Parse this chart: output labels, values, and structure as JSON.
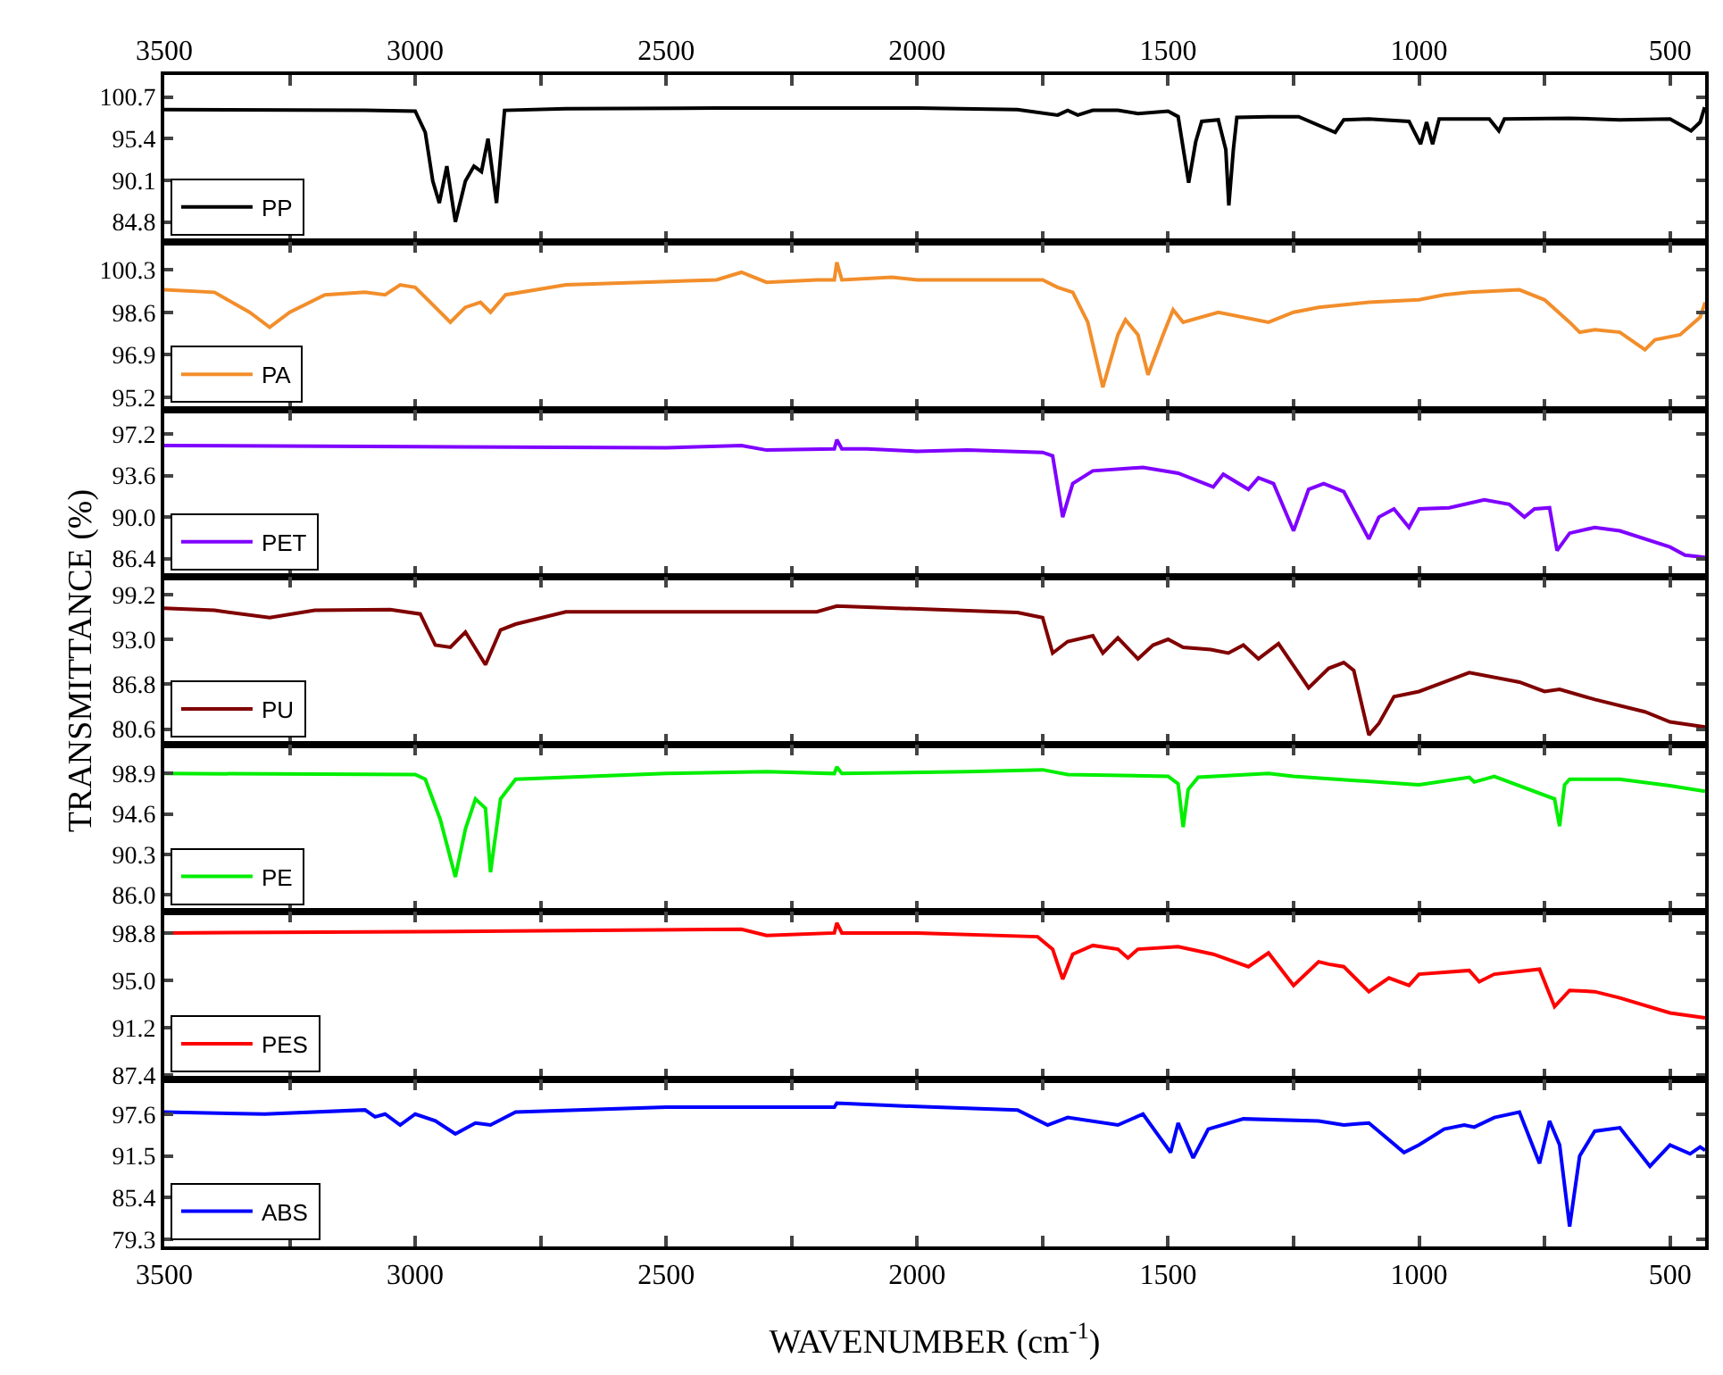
{
  "chart_data": [
    {
      "type": "line",
      "legend": "bottom left",
      "xlim": [
        3500,
        430
      ],
      "xticks": [
        3500,
        {
          "value": 3250,
          "label": null
        },
        3000,
        {
          "value": 2750,
          "label": null
        },
        2500,
        {
          "value": 2250,
          "label": null
        },
        2000,
        {
          "value": 1750,
          "label": null
        },
        1500,
        {
          "value": 1250,
          "label": null
        },
        1000,
        {
          "value": 750,
          "label": null
        },
        500
      ],
      "ylim": [
        82.2,
        103.5
      ],
      "yticks": [
        84.8,
        90.1,
        95.4,
        100.7
      ],
      "series": [
        {
          "name": "PP",
          "color": "#000000",
          "x": [
            3500,
            3100,
            3000,
            2980,
            2965,
            2952,
            2937,
            2920,
            2900,
            2883,
            2868,
            2855,
            2838,
            2822,
            2700,
            2400,
            2000,
            1800,
            1720,
            1700,
            1680,
            1650,
            1600,
            1560,
            1500,
            1480,
            1459,
            1445,
            1433,
            1400,
            1385,
            1379,
            1370,
            1363,
            1300,
            1240,
            1167,
            1150,
            1100,
            1020,
            997,
            985,
            973,
            960,
            900,
            860,
            841,
            830,
            700,
            600,
            500,
            458,
            440,
            431
          ],
          "values": [
            99.1,
            99.0,
            98.9,
            96.2,
            90,
            87.2,
            91.9,
            84.8,
            90,
            91.9,
            91.2,
            95.4,
            87.2,
            99.0,
            99.2,
            99.3,
            99.3,
            99.1,
            98.4,
            99.0,
            98.4,
            99.0,
            99.0,
            98.6,
            98.9,
            98.2,
            89.8,
            95,
            97.6,
            97.8,
            94,
            86.9,
            94,
            98.1,
            98.2,
            98.2,
            96.2,
            97.8,
            97.9,
            97.6,
            94.7,
            97.5,
            94.7,
            97.9,
            97.9,
            97.9,
            96.4,
            97.9,
            98.0,
            97.8,
            97.9,
            96.4,
            97.5,
            99.4
          ]
        }
      ]
    },
    {
      "type": "line",
      "legend": "bottom left",
      "tick_labels": "y",
      "xlim": [
        3500,
        430
      ],
      "xticks": [
        3500,
        {
          "value": 3250,
          "label": null
        },
        3000,
        {
          "value": 2750,
          "label": null
        },
        2500,
        {
          "value": 2250,
          "label": null
        },
        2000,
        {
          "value": 1750,
          "label": null
        },
        1500,
        {
          "value": 1250,
          "label": null
        },
        1000,
        {
          "value": 750,
          "label": null
        },
        500
      ],
      "ylim": [
        94.7,
        101.4
      ],
      "yticks": [
        95.2,
        96.9,
        98.6,
        100.3
      ],
      "series": [
        {
          "name": "PA",
          "color": "#f28e2b",
          "x": [
            3500,
            3400,
            3330,
            3290,
            3250,
            3180,
            3100,
            3060,
            3030,
            3000,
            2960,
            2930,
            2900,
            2870,
            2850,
            2820,
            2700,
            2400,
            2350,
            2300,
            2200,
            2165,
            2160,
            2150,
            2050,
            2000,
            1900,
            1750,
            1720,
            1690,
            1660,
            1630,
            1600,
            1585,
            1560,
            1540,
            1510,
            1490,
            1470,
            1400,
            1300,
            1250,
            1200,
            1100,
            1000,
            950,
            900,
            800,
            750,
            700,
            680,
            650,
            600,
            550,
            530,
            480,
            440,
            430
          ],
          "values": [
            99.5,
            99.4,
            98.6,
            98.0,
            98.6,
            99.3,
            99.4,
            99.3,
            99.7,
            99.6,
            98.8,
            98.2,
            98.8,
            99.0,
            98.6,
            99.3,
            99.7,
            99.9,
            100.2,
            99.8,
            99.9,
            99.9,
            100.6,
            99.9,
            100.0,
            99.9,
            99.9,
            99.9,
            99.6,
            99.4,
            98.2,
            95.6,
            97.7,
            98.3,
            97.7,
            96.1,
            97.7,
            98.7,
            98.2,
            98.6,
            98.2,
            98.6,
            98.8,
            99.0,
            99.1,
            99.3,
            99.4,
            99.5,
            99.1,
            98.2,
            97.8,
            97.9,
            97.8,
            97.1,
            97.5,
            97.7,
            98.4,
            99.0
          ]
        }
      ]
    },
    {
      "type": "line",
      "legend": "bottom left",
      "tick_labels": "y",
      "xlim": [
        3500,
        430
      ],
      "xticks": [
        3500,
        {
          "value": 3250,
          "label": null
        },
        3000,
        {
          "value": 2750,
          "label": null
        },
        2500,
        {
          "value": 2250,
          "label": null
        },
        2000,
        {
          "value": 1750,
          "label": null
        },
        1500,
        {
          "value": 1250,
          "label": null
        },
        1000,
        {
          "value": 750,
          "label": null
        },
        500
      ],
      "ylim": [
        84.8,
        99.3
      ],
      "yticks": [
        86.4,
        {
          "value": 90,
          "label": "90.0"
        },
        93.6,
        97.2
      ],
      "series": [
        {
          "name": "PET",
          "color": "#7f00ff",
          "x": [
            3500,
            3000,
            2500,
            2350,
            2300,
            2165,
            2160,
            2150,
            2100,
            2000,
            1900,
            1750,
            1730,
            1710,
            1690,
            1650,
            1550,
            1480,
            1410,
            1390,
            1340,
            1320,
            1290,
            1250,
            1220,
            1190,
            1150,
            1100,
            1080,
            1050,
            1020,
            1000,
            940,
            870,
            820,
            790,
            770,
            740,
            725,
            700,
            650,
            600,
            500,
            470,
            430
          ],
          "values": [
            96.2,
            96.1,
            96.0,
            96.2,
            95.8,
            95.9,
            96.7,
            95.9,
            95.9,
            95.7,
            95.8,
            95.6,
            95.3,
            90.0,
            92.9,
            94.0,
            94.3,
            93.8,
            92.6,
            93.7,
            92.4,
            93.4,
            92.9,
            88.8,
            92.4,
            92.9,
            92.2,
            88.1,
            90.0,
            90.7,
            89.1,
            90.7,
            90.8,
            91.5,
            91.1,
            90.0,
            90.7,
            90.8,
            87.1,
            88.6,
            89.1,
            88.8,
            87.4,
            86.7,
            86.5
          ]
        }
      ]
    },
    {
      "type": "line",
      "legend": "bottom left",
      "tick_labels": "y",
      "xlim": [
        3500,
        430
      ],
      "xticks": [
        3500,
        {
          "value": 3250,
          "label": null
        },
        3000,
        {
          "value": 2750,
          "label": null
        },
        2500,
        {
          "value": 2250,
          "label": null
        },
        2000,
        {
          "value": 1750,
          "label": null
        },
        1500,
        {
          "value": 1250,
          "label": null
        },
        1000,
        {
          "value": 750,
          "label": null
        },
        500
      ],
      "ylim": [
        78.5,
        101.6
      ],
      "yticks": [
        80.6,
        86.8,
        {
          "value": 93,
          "label": "93.0"
        },
        99.2
      ],
      "ylabel": "TRANSMITTANCE (%)",
      "series": [
        {
          "name": "PU",
          "color": "#800000",
          "x": [
            3500,
            3400,
            3290,
            3200,
            3050,
            2990,
            2960,
            2930,
            2900,
            2860,
            2830,
            2800,
            2700,
            2200,
            2160,
            1800,
            1750,
            1730,
            1700,
            1650,
            1630,
            1600,
            1560,
            1530,
            1500,
            1470,
            1415,
            1380,
            1350,
            1320,
            1280,
            1220,
            1180,
            1150,
            1130,
            1100,
            1080,
            1050,
            1000,
            900,
            800,
            750,
            720,
            650,
            550,
            500,
            430
          ],
          "values": [
            97.3,
            97.0,
            96.0,
            97.0,
            97.1,
            96.5,
            92.2,
            91.9,
            94.0,
            89.5,
            94.3,
            95.1,
            96.8,
            96.8,
            97.6,
            96.7,
            96.0,
            91.1,
            92.7,
            93.5,
            91.1,
            93.2,
            90.3,
            92.2,
            93.0,
            91.9,
            91.6,
            91.1,
            92.2,
            90.3,
            92.4,
            86.3,
            89.0,
            89.8,
            88.7,
            79.8,
            81.4,
            85.1,
            85.8,
            88.4,
            87.1,
            85.8,
            86.1,
            84.7,
            83.0,
            81.6,
            80.9
          ]
        }
      ]
    },
    {
      "type": "line",
      "legend": "bottom left",
      "tick_labels": "y",
      "xlim": [
        3500,
        430
      ],
      "xticks": [
        3500,
        {
          "value": 3250,
          "label": null
        },
        3000,
        {
          "value": 2750,
          "label": null
        },
        2500,
        {
          "value": 2250,
          "label": null
        },
        2000,
        {
          "value": 1750,
          "label": null
        },
        1500,
        {
          "value": 1250,
          "label": null
        },
        1000,
        {
          "value": 750,
          "label": null
        },
        500
      ],
      "ylim": [
        84.2,
        102.0
      ],
      "yticks": [
        {
          "value": 86,
          "label": "86.0"
        },
        90.3,
        94.6,
        98.9
      ],
      "series": [
        {
          "name": "PE",
          "color": "#00ee00",
          "x": [
            3500,
            3000,
            2980,
            2950,
            2920,
            2900,
            2880,
            2860,
            2850,
            2830,
            2800,
            2500,
            2300,
            2165,
            2160,
            2150,
            1900,
            1750,
            1700,
            1500,
            1480,
            1470,
            1460,
            1440,
            1300,
            1250,
            1000,
            900,
            890,
            850,
            730,
            720,
            710,
            700,
            600,
            500,
            430
          ],
          "values": [
            98.9,
            98.8,
            98.3,
            94.0,
            87.9,
            93.0,
            96.2,
            95.2,
            88.4,
            96.2,
            98.3,
            98.9,
            99.1,
            98.9,
            99.6,
            98.9,
            99.1,
            99.3,
            98.8,
            98.6,
            97.8,
            93.2,
            97.2,
            98.5,
            98.9,
            98.6,
            97.7,
            98.5,
            98.0,
            98.6,
            96.2,
            93.3,
            97.7,
            98.3,
            98.3,
            97.6,
            97.0
          ]
        }
      ]
    },
    {
      "type": "line",
      "legend": "bottom left",
      "tick_labels": "y",
      "xlim": [
        3500,
        430
      ],
      "xticks": [
        3500,
        {
          "value": 3250,
          "label": null
        },
        3000,
        {
          "value": 2750,
          "label": null
        },
        2500,
        {
          "value": 2250,
          "label": null
        },
        2000,
        {
          "value": 1750,
          "label": null
        },
        1500,
        {
          "value": 1250,
          "label": null
        },
        1000,
        {
          "value": 750,
          "label": null
        },
        500
      ],
      "ylim": [
        87.1,
        100.5
      ],
      "yticks": [
        87.4,
        91.2,
        {
          "value": 95,
          "label": "95.0"
        },
        98.8
      ],
      "series": [
        {
          "name": "PES",
          "color": "#ff0000",
          "x": [
            3500,
            3000,
            2350,
            2300,
            2165,
            2160,
            2150,
            2000,
            1760,
            1730,
            1710,
            1690,
            1650,
            1600,
            1580,
            1560,
            1480,
            1410,
            1340,
            1300,
            1250,
            1200,
            1180,
            1150,
            1100,
            1060,
            1020,
            1000,
            900,
            880,
            850,
            760,
            730,
            700,
            650,
            600,
            500,
            430
          ],
          "values": [
            98.8,
            98.9,
            99.1,
            98.6,
            98.8,
            99.6,
            98.8,
            98.8,
            98.5,
            97.5,
            95.1,
            97.1,
            97.8,
            97.5,
            96.8,
            97.5,
            97.7,
            97.1,
            96.1,
            97.2,
            94.6,
            96.5,
            96.3,
            96.1,
            94.1,
            95.2,
            94.6,
            95.5,
            95.8,
            94.9,
            95.5,
            95.9,
            92.9,
            94.2,
            94.1,
            93.6,
            92.4,
            92.0
          ]
        }
      ]
    },
    {
      "type": "line",
      "legend": "bottom left",
      "xlim": [
        3500,
        430
      ],
      "xticks": [
        3500,
        {
          "value": 3250,
          "label": null
        },
        3000,
        {
          "value": 2750,
          "label": null
        },
        2500,
        {
          "value": 2250,
          "label": null
        },
        2000,
        {
          "value": 1750,
          "label": null
        },
        1500,
        {
          "value": 1250,
          "label": null
        },
        1000,
        {
          "value": 750,
          "label": null
        },
        500
      ],
      "ylim": [
        78.3,
        102.7
      ],
      "yticks": [
        79.3,
        85.4,
        91.5,
        97.6
      ],
      "xlabel": "WAVENUMBER (cm$^{-1}$)",
      "series": [
        {
          "name": "ABS",
          "color": "#0000ff",
          "x": [
            3500,
            3300,
            3100,
            3080,
            3060,
            3030,
            3000,
            2960,
            2920,
            2880,
            2850,
            2800,
            2500,
            2165,
            2160,
            2000,
            1800,
            1740,
            1700,
            1600,
            1550,
            1495,
            1480,
            1450,
            1420,
            1350,
            1200,
            1150,
            1100,
            1030,
            1000,
            950,
            910,
            890,
            850,
            800,
            760,
            740,
            720,
            700,
            680,
            650,
            600,
            540,
            500,
            460,
            440,
            430
          ],
          "values": [
            97.9,
            97.6,
            98.2,
            97.2,
            97.6,
            96.0,
            97.6,
            96.6,
            94.7,
            96.3,
            96.0,
            97.9,
            98.6,
            98.6,
            99.2,
            98.7,
            98.2,
            96.0,
            97.1,
            96.0,
            97.6,
            92.0,
            96.3,
            91.2,
            95.4,
            96.9,
            96.6,
            96.0,
            96.3,
            92.0,
            93.1,
            95.4,
            96.0,
            95.7,
            97.1,
            97.9,
            90.4,
            96.6,
            93.1,
            81.2,
            91.5,
            95.1,
            95.6,
            90.0,
            93.1,
            91.8,
            92.8,
            92.3
          ]
        }
      ]
    }
  ]
}
